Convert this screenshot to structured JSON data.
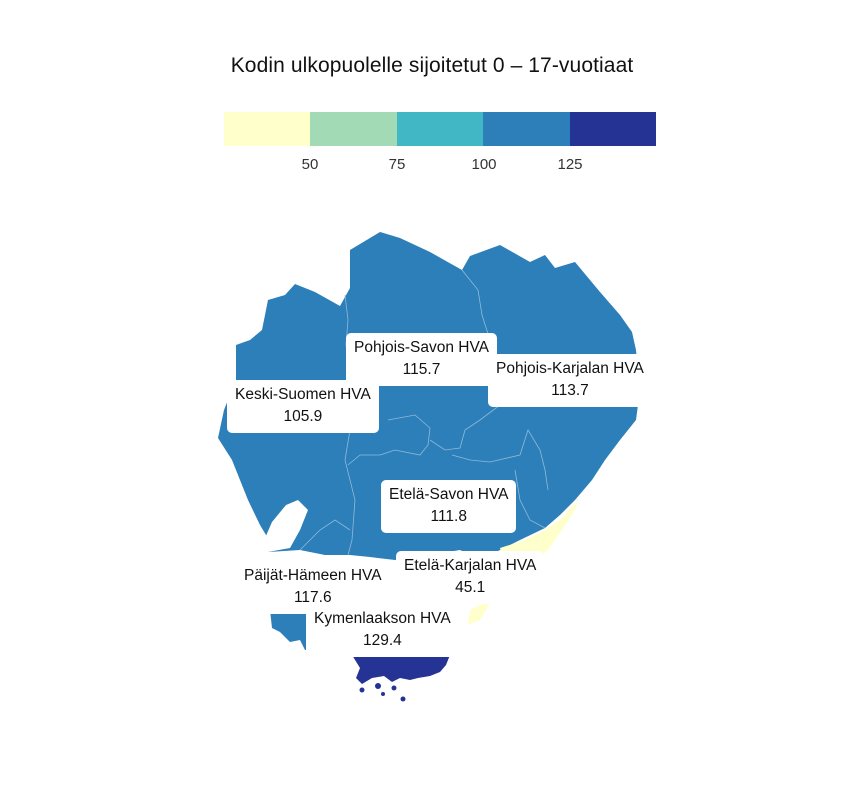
{
  "title": "Kodin ulkopuolelle sijoitetut 0 – 17-vuotiaat",
  "legend": {
    "colors": [
      "#ffffcc",
      "#a1dab4",
      "#41b6c4",
      "#2c7fb8",
      "#253494"
    ],
    "ticks": [
      "50",
      "75",
      "100",
      "125"
    ]
  },
  "regions": [
    {
      "name": "Pohjois-Savon HVA",
      "value": "115.7",
      "color": "#2c7fb8"
    },
    {
      "name": "Pohjois-Karjalan HVA",
      "value": "113.7",
      "color": "#2c7fb8"
    },
    {
      "name": "Keski-Suomen HVA",
      "value": "105.9",
      "color": "#2c7fb8"
    },
    {
      "name": "Etelä-Savon HVA",
      "value": "111.8",
      "color": "#2c7fb8"
    },
    {
      "name": "Päijät-Hämeen HVA",
      "value": "117.6",
      "color": "#2c7fb8"
    },
    {
      "name": "Etelä-Karjalan HVA",
      "value": "45.1",
      "color": "#ffffcc"
    },
    {
      "name": "Kymenlaakson HVA",
      "value": "129.4",
      "color": "#253494"
    }
  ]
}
